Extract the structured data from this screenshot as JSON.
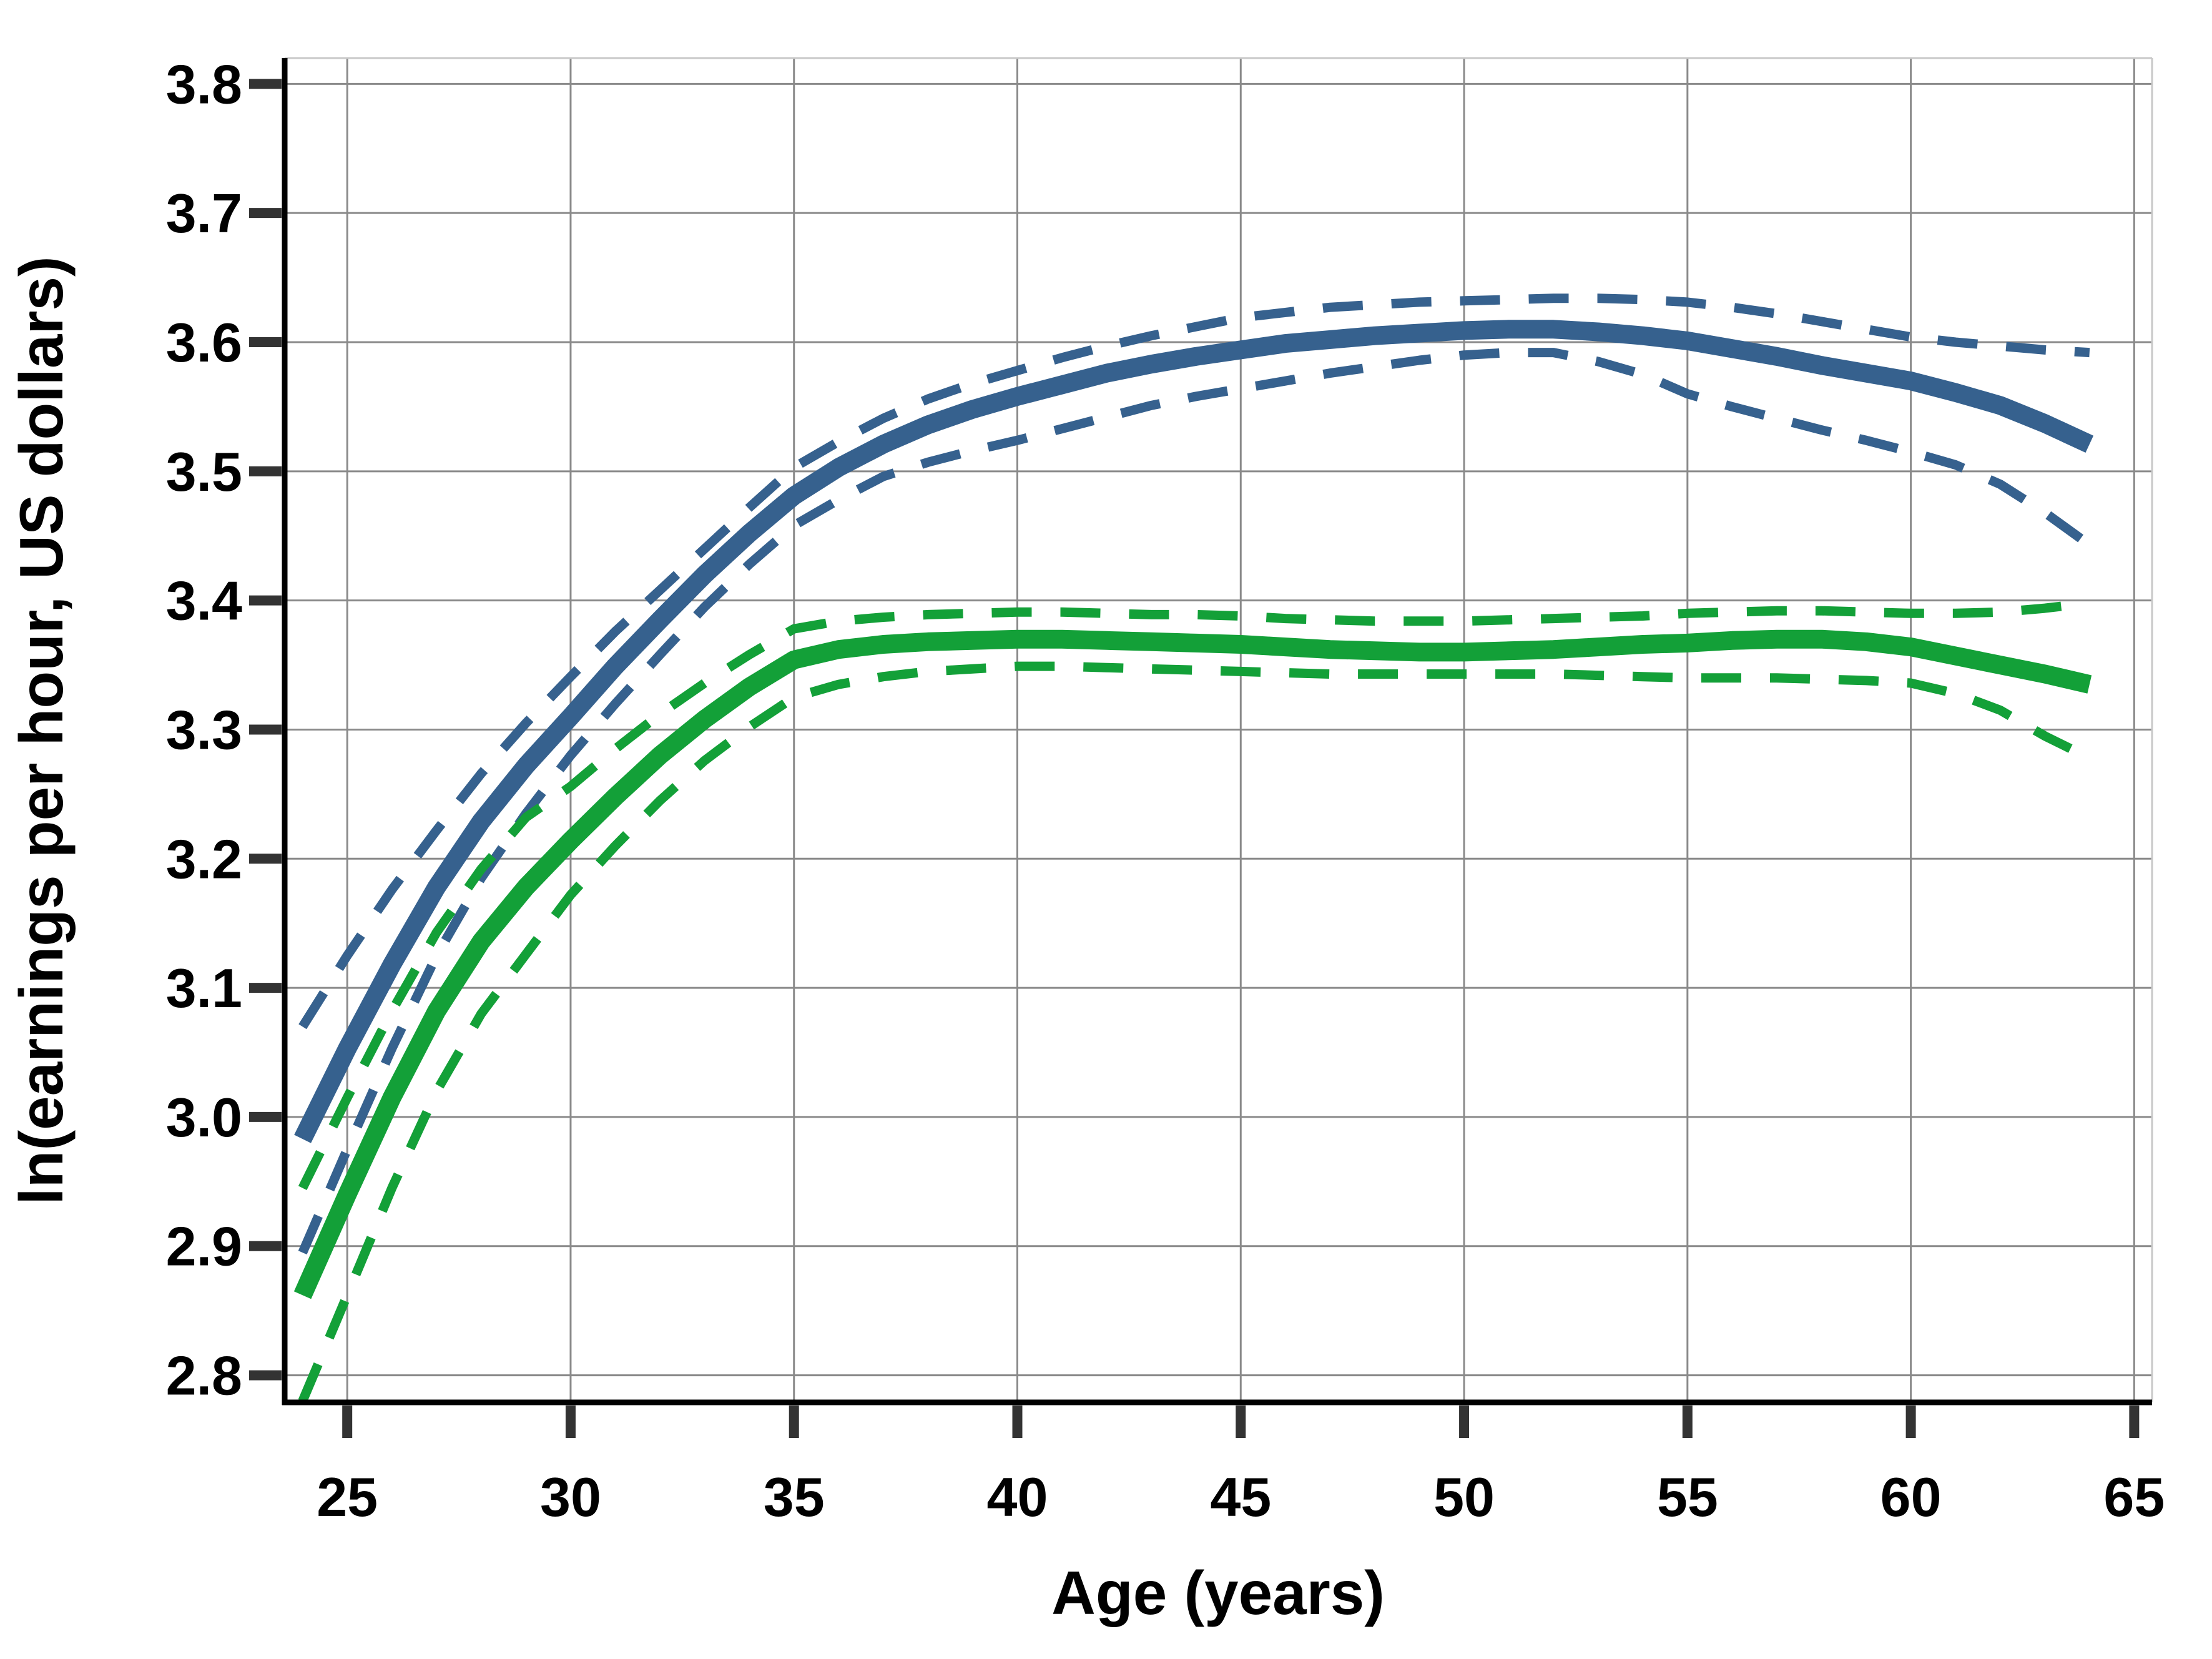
{
  "figure": {
    "background": "#ffffff"
  },
  "chart_data": {
    "type": "line",
    "title": "",
    "xlabel": "Age (years)",
    "ylabel": "ln(earnings per hour, US dollars)",
    "grid": true,
    "legend": "none",
    "x_ticks": [
      25,
      30,
      35,
      40,
      45,
      50,
      55,
      60,
      65
    ],
    "y_ticks": [
      2.8,
      2.9,
      3.0,
      3.1,
      3.2,
      3.3,
      3.4,
      3.5,
      3.6,
      3.7,
      3.8
    ],
    "xlim": [
      23.6,
      65.4
    ],
    "ylim": [
      2.779,
      3.82
    ],
    "x": [
      24,
      25,
      26,
      27,
      28,
      29,
      30,
      31,
      32,
      33,
      34,
      35,
      36,
      37,
      38,
      39,
      40,
      41,
      42,
      43,
      44,
      45,
      46,
      47,
      48,
      49,
      50,
      51,
      52,
      53,
      54,
      55,
      56,
      57,
      58,
      59,
      60,
      61,
      62,
      63,
      64
    ],
    "series": [
      {
        "name": "blue-fit",
        "style": "solid",
        "color": "#36618E",
        "width": 30,
        "values": [
          2.983,
          3.053,
          3.118,
          3.178,
          3.229,
          3.272,
          3.31,
          3.349,
          3.385,
          3.42,
          3.452,
          3.481,
          3.503,
          3.521,
          3.536,
          3.548,
          3.558,
          3.567,
          3.576,
          3.583,
          3.589,
          3.594,
          3.599,
          3.602,
          3.605,
          3.607,
          3.609,
          3.61,
          3.61,
          3.608,
          3.605,
          3.601,
          3.595,
          3.589,
          3.582,
          3.576,
          3.57,
          3.561,
          3.551,
          3.537,
          3.521
        ]
      },
      {
        "name": "blue-ci-upper",
        "style": "dashed",
        "color": "#36618E",
        "width": 15,
        "values": [
          3.07,
          3.125,
          3.176,
          3.222,
          3.266,
          3.305,
          3.341,
          3.376,
          3.408,
          3.44,
          3.472,
          3.503,
          3.523,
          3.541,
          3.556,
          3.568,
          3.578,
          3.588,
          3.597,
          3.605,
          3.612,
          3.619,
          3.623,
          3.627,
          3.629,
          3.631,
          3.632,
          3.633,
          3.634,
          3.634,
          3.633,
          3.631,
          3.627,
          3.622,
          3.616,
          3.61,
          3.604,
          3.6,
          3.597,
          3.594,
          3.592
        ]
      },
      {
        "name": "blue-ci-lower",
        "style": "dashed",
        "color": "#36618E",
        "width": 15,
        "values": [
          2.895,
          2.975,
          3.053,
          3.125,
          3.185,
          3.235,
          3.28,
          3.32,
          3.358,
          3.395,
          3.428,
          3.458,
          3.478,
          3.496,
          3.507,
          3.516,
          3.524,
          3.533,
          3.542,
          3.551,
          3.558,
          3.564,
          3.57,
          3.576,
          3.581,
          3.586,
          3.59,
          3.592,
          3.592,
          3.585,
          3.575,
          3.56,
          3.55,
          3.541,
          3.532,
          3.524,
          3.515,
          3.505,
          3.49,
          3.468,
          3.443
        ]
      },
      {
        "name": "green-fit",
        "style": "solid",
        "color": "#13A038",
        "width": 30,
        "values": [
          2.862,
          2.94,
          3.015,
          3.082,
          3.136,
          3.178,
          3.214,
          3.248,
          3.28,
          3.308,
          3.333,
          3.354,
          3.362,
          3.366,
          3.368,
          3.369,
          3.37,
          3.37,
          3.369,
          3.368,
          3.367,
          3.366,
          3.364,
          3.362,
          3.361,
          3.36,
          3.36,
          3.361,
          3.362,
          3.364,
          3.366,
          3.367,
          3.369,
          3.37,
          3.37,
          3.368,
          3.364,
          3.357,
          3.35,
          3.343,
          3.335
        ]
      },
      {
        "name": "green-ci-upper",
        "style": "dashed",
        "color": "#13A038",
        "width": 15,
        "values": [
          2.945,
          3.015,
          3.082,
          3.143,
          3.192,
          3.232,
          3.256,
          3.285,
          3.312,
          3.336,
          3.358,
          3.378,
          3.384,
          3.387,
          3.389,
          3.39,
          3.391,
          3.391,
          3.39,
          3.389,
          3.389,
          3.388,
          3.386,
          3.385,
          3.384,
          3.384,
          3.384,
          3.385,
          3.386,
          3.387,
          3.388,
          3.39,
          3.391,
          3.392,
          3.392,
          3.391,
          3.39,
          3.39,
          3.391,
          3.394,
          3.398
        ]
      },
      {
        "name": "green-ci-lower",
        "style": "dashed",
        "color": "#13A038",
        "width": 15,
        "values": [
          2.78,
          2.862,
          2.945,
          3.02,
          3.08,
          3.126,
          3.172,
          3.21,
          3.245,
          3.276,
          3.302,
          3.325,
          3.335,
          3.341,
          3.345,
          3.347,
          3.349,
          3.349,
          3.348,
          3.347,
          3.346,
          3.345,
          3.344,
          3.343,
          3.343,
          3.343,
          3.343,
          3.343,
          3.343,
          3.342,
          3.341,
          3.34,
          3.34,
          3.34,
          3.339,
          3.338,
          3.336,
          3.328,
          3.315,
          3.295,
          3.278
        ]
      }
    ],
    "colors": {
      "grid": "#8a8a8a",
      "spine": "#000000",
      "tick": "#333333",
      "frame_light": "#c8c8c8"
    }
  }
}
